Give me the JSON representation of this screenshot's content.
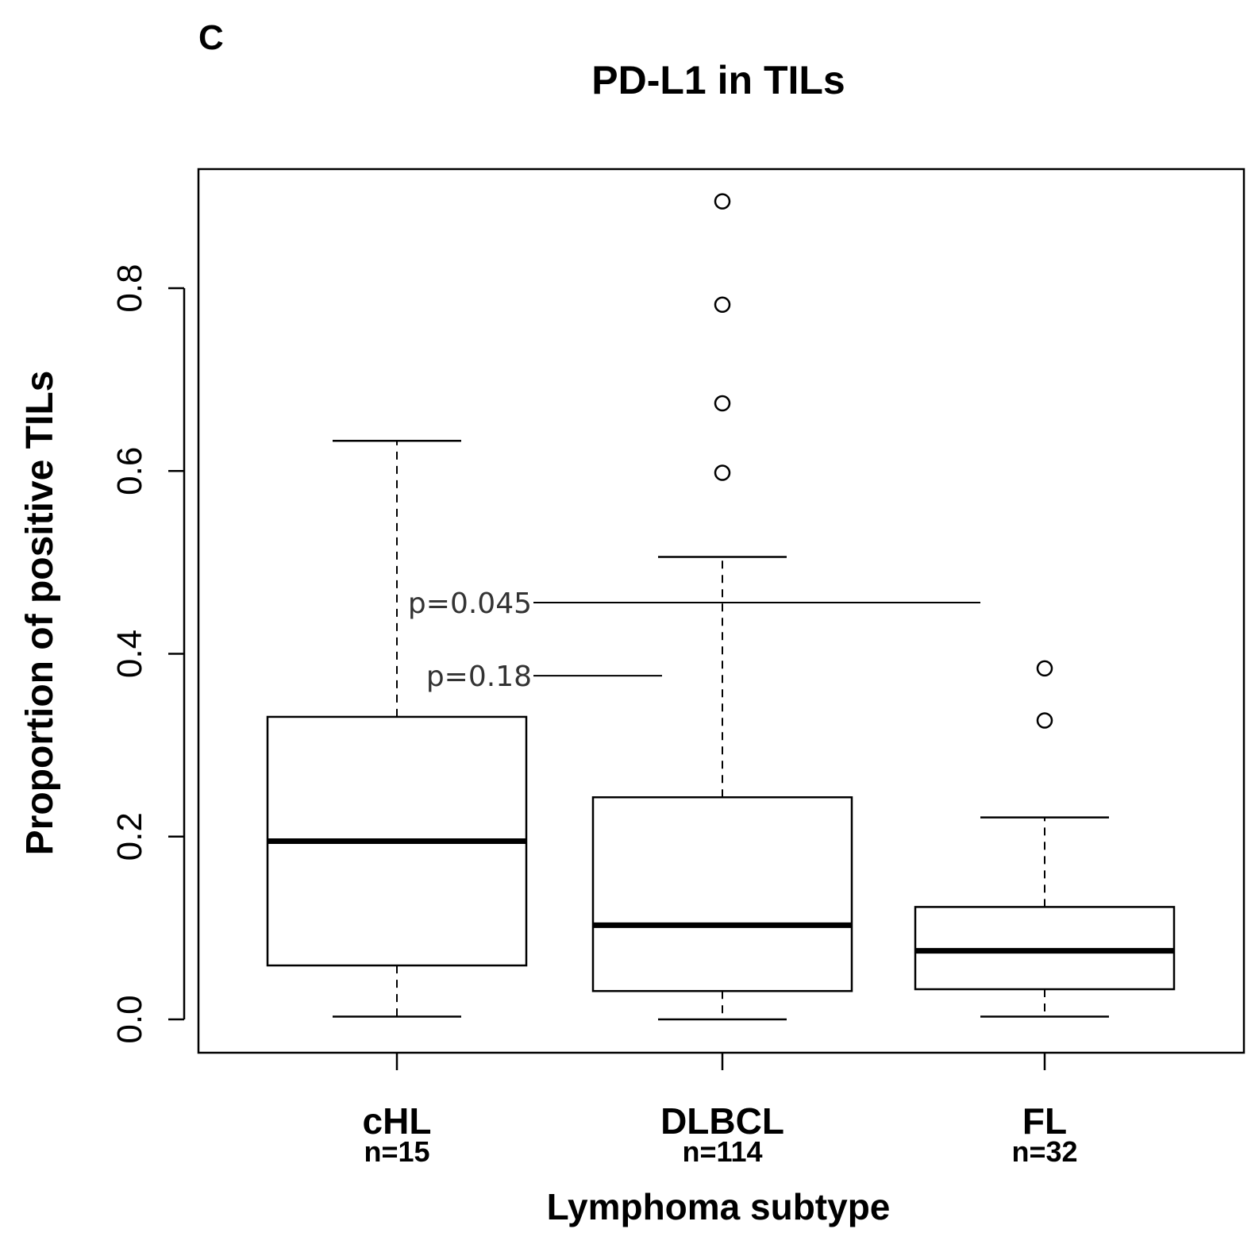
{
  "panel_label": "C",
  "chart_data": {
    "type": "box",
    "title": "PD-L1 in TILs",
    "xlabel": "Lymphoma subtype",
    "ylabel": "Proportion of positive TILs",
    "ylim": [
      -0.03,
      0.94
    ],
    "yticks": [
      0.0,
      0.2,
      0.4,
      0.6,
      0.8
    ],
    "ytick_labels": [
      "0.0",
      "0.2",
      "0.4",
      "0.6",
      "0.8"
    ],
    "categories": [
      "cHL",
      "DLBCL",
      "FL"
    ],
    "sample_sizes": [
      "n=15",
      "n=114",
      "n=32"
    ],
    "boxes": [
      {
        "category": "cHL",
        "whisker_low": 0.003,
        "q1": 0.059,
        "median": 0.195,
        "q3": 0.331,
        "whisker_high": 0.633,
        "outliers": []
      },
      {
        "category": "DLBCL",
        "whisker_low": 0.0,
        "q1": 0.031,
        "median": 0.103,
        "q3": 0.243,
        "whisker_high": 0.506,
        "outliers": [
          0.598,
          0.674,
          0.782,
          0.895
        ]
      },
      {
        "category": "FL",
        "whisker_low": 0.003,
        "q1": 0.033,
        "median": 0.075,
        "q3": 0.123,
        "whisker_high": 0.221,
        "outliers": [
          0.327,
          0.384
        ]
      }
    ],
    "annotations": [
      {
        "text": "p=0.045",
        "y": 0.456,
        "x_from": "cHL",
        "x_to": "FL"
      },
      {
        "text": "p=0.18",
        "y": 0.376,
        "x_from": "cHL",
        "x_to": "DLBCL"
      }
    ],
    "grid": false,
    "legend": "none"
  }
}
